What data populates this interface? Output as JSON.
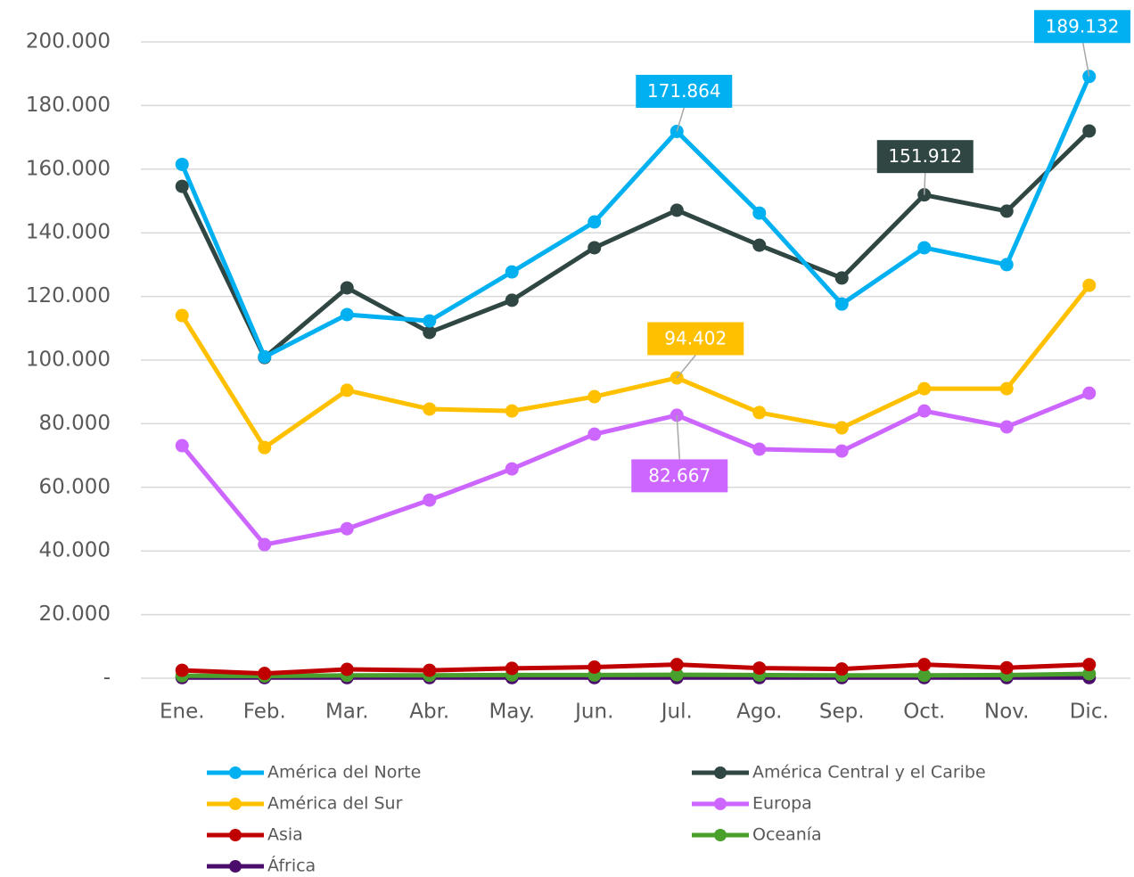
{
  "chart_data": {
    "type": "line",
    "categories": [
      "Ene.",
      "Feb.",
      "Mar.",
      "Abr.",
      "May.",
      "Jun.",
      "Jul.",
      "Ago.",
      "Sep.",
      "Oct.",
      "Nov.",
      "Dic."
    ],
    "ylim": [
      0,
      200000
    ],
    "yticks": [
      {
        "value": 0,
        "label": "-"
      },
      {
        "value": 20000,
        "label": "20.000"
      },
      {
        "value": 40000,
        "label": "40.000"
      },
      {
        "value": 60000,
        "label": "60.000"
      },
      {
        "value": 80000,
        "label": "80.000"
      },
      {
        "value": 100000,
        "label": "100.000"
      },
      {
        "value": 120000,
        "label": "120.000"
      },
      {
        "value": 140000,
        "label": "140.000"
      },
      {
        "value": 160000,
        "label": "160.000"
      },
      {
        "value": 180000,
        "label": "180.000"
      },
      {
        "value": 200000,
        "label": "200.000"
      }
    ],
    "grid": true,
    "legend": "bottom",
    "series": [
      {
        "name": "América del Norte",
        "color": "#00b0f0",
        "values": [
          161500,
          101000,
          114300,
          112300,
          127700,
          143400,
          171864,
          146200,
          117600,
          135300,
          130000,
          189132
        ],
        "value_labels": [
          null,
          null,
          null,
          null,
          null,
          null,
          "171.864",
          null,
          null,
          null,
          null,
          "189.132"
        ]
      },
      {
        "name": "América Central y el Caribe",
        "color": "#2f4643",
        "values": [
          154600,
          100800,
          122700,
          108700,
          118800,
          135300,
          147100,
          136100,
          125800,
          151912,
          146800,
          172000
        ],
        "value_labels": [
          null,
          null,
          null,
          null,
          null,
          null,
          null,
          null,
          null,
          "151.912",
          null,
          null
        ]
      },
      {
        "name": "América del Sur",
        "color": "#ffc000",
        "values": [
          114000,
          72500,
          90500,
          84600,
          84000,
          88500,
          94402,
          83500,
          78700,
          91000,
          91000,
          123500
        ],
        "value_labels": [
          null,
          null,
          null,
          null,
          null,
          null,
          "94.402",
          null,
          null,
          null,
          null,
          null
        ]
      },
      {
        "name": "Europa",
        "color": "#cc66ff",
        "values": [
          73100,
          42000,
          47000,
          56000,
          65800,
          76700,
          82667,
          72000,
          71400,
          84000,
          79000,
          89600
        ],
        "value_labels": [
          null,
          null,
          null,
          null,
          null,
          null,
          "82.667",
          null,
          null,
          null,
          null,
          null
        ]
      },
      {
        "name": "Asia",
        "color": "#c00000",
        "values": [
          2500,
          1500,
          2800,
          2500,
          3100,
          3500,
          4300,
          3200,
          2900,
          4300,
          3300,
          4300
        ]
      },
      {
        "name": "Oceanía",
        "color": "#4aa02c",
        "values": [
          800,
          700,
          900,
          900,
          1000,
          1000,
          1100,
          1000,
          900,
          900,
          1000,
          1400
        ]
      },
      {
        "name": "África",
        "color": "#4b0d6b",
        "values": [
          200,
          200,
          200,
          200,
          200,
          200,
          200,
          200,
          200,
          200,
          200,
          200
        ]
      }
    ]
  }
}
